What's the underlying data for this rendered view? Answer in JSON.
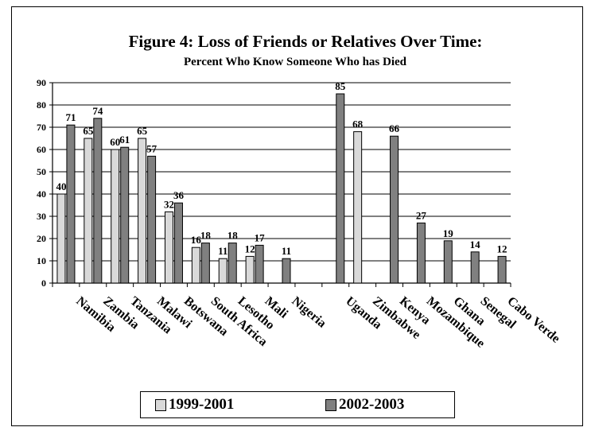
{
  "colors": {
    "series1": "#d9d9d9",
    "series2": "#808080",
    "axis": "#000000"
  },
  "chart_data": {
    "type": "bar",
    "title": "Figure 4: Loss of Friends or Relatives Over Time:",
    "subtitle": "Percent Who Know Someone Who has Died",
    "xlabel": "",
    "ylabel": "",
    "ylim": [
      0,
      90
    ],
    "yticks": [
      "0",
      "10",
      "20",
      "30",
      "40",
      "50",
      "60",
      "70",
      "80",
      "90"
    ],
    "grid": true,
    "legend": "bottom",
    "categories": [
      "Namibia",
      "Zambia",
      "Tanzania",
      "Malawi",
      "Botswana",
      "South Africa",
      "Lesotho",
      "Mali",
      "Nigeria",
      "",
      "Uganda",
      "Zimbabwe",
      "Kenya",
      "Mozambique",
      "Ghana",
      "Senegal",
      "Cabo Verde"
    ],
    "series": [
      {
        "name": "1999-2001",
        "values": [
          40,
          65,
          60,
          65,
          32,
          16,
          11,
          12,
          null,
          null,
          null,
          68,
          null,
          null,
          null,
          null,
          null
        ]
      },
      {
        "name": "2002-2003",
        "values": [
          71,
          74,
          61,
          57,
          36,
          18,
          18,
          17,
          11,
          null,
          85,
          null,
          66,
          27,
          19,
          14,
          12
        ]
      }
    ]
  }
}
